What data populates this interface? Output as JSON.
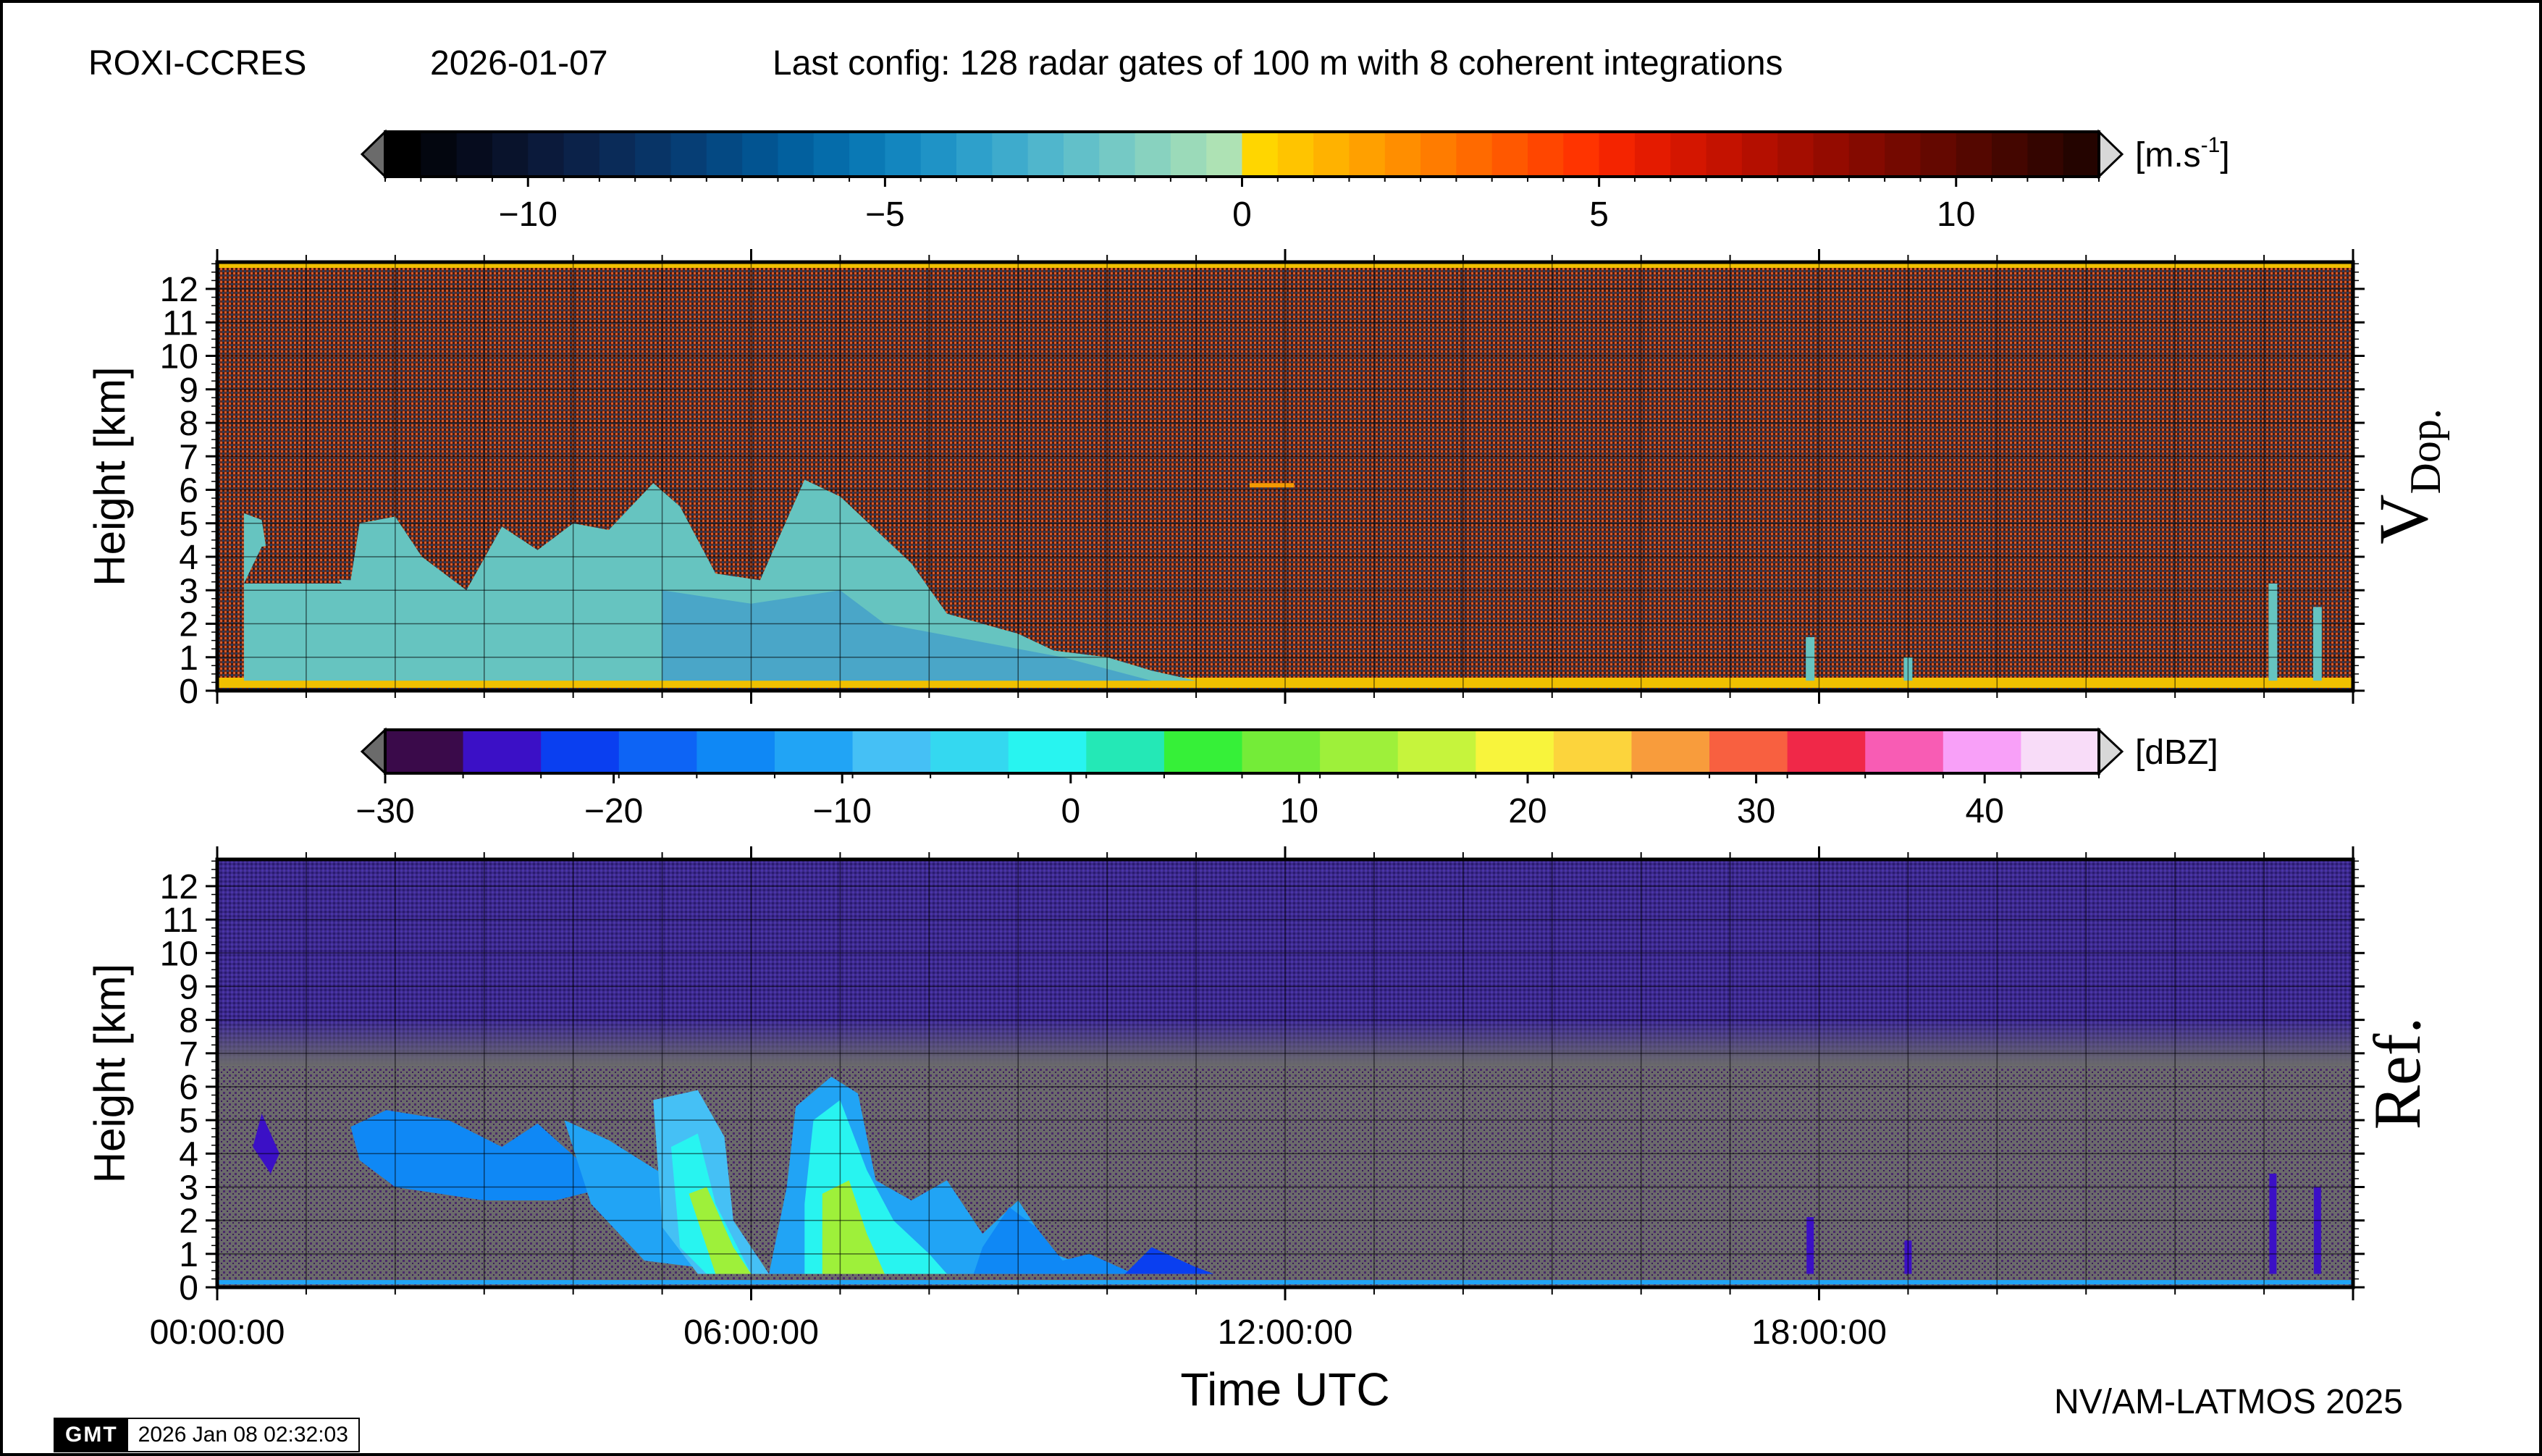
{
  "header": {
    "station": "ROXI-CCRES",
    "date": "2026-01-07",
    "config": "Last config: 128 radar gates of 100 m with 8 coherent integrations"
  },
  "footer": {
    "credit": "NV/AM-LATMOS 2025",
    "gmt_logo": "GMT",
    "gmt_timestamp": "2026 Jan 08 02:32:03"
  },
  "chart_data": [
    {
      "type": "heatmap",
      "name": "doppler_velocity",
      "side_label_main": "V",
      "side_label_sub": "Dop.",
      "ylabel": "Height [km]",
      "y_ticks": [
        0,
        1,
        2,
        3,
        4,
        5,
        6,
        7,
        8,
        9,
        10,
        11,
        12
      ],
      "ylim": [
        0,
        12.8
      ],
      "xlim_hours": [
        0,
        24
      ],
      "grid": true,
      "colorbar": {
        "unit_main": "[m.s",
        "unit_exp": "-1",
        "unit_close": "]",
        "range": [
          -12,
          12
        ],
        "tick_values": [
          -10,
          -5,
          0,
          5,
          10
        ],
        "tick_labels": [
          "−10",
          "−5",
          "0",
          "5",
          "10"
        ],
        "colors": [
          "#000000",
          "#03060f",
          "#060c1e",
          "#09132c",
          "#0b1a3b",
          "#0b2249",
          "#0a2b58",
          "#083466",
          "#063e75",
          "#044983",
          "#025491",
          "#02609e",
          "#056caa",
          "#0a79b5",
          "#1386bf",
          "#1f93c6",
          "#2ea0cb",
          "#3eabcc",
          "#50b6cc",
          "#62c0c9",
          "#75c9c5",
          "#88d2bf",
          "#9bdab9",
          "#aee2b4",
          "#ffd600",
          "#ffc400",
          "#ffb200",
          "#ffa000",
          "#ff8e00",
          "#ff7c00",
          "#ff6a00",
          "#ff5800",
          "#ff4600",
          "#ff3400",
          "#f42400",
          "#e41b00",
          "#d41600",
          "#c41200",
          "#b40f00",
          "#a40d00",
          "#940b00",
          "#840a00",
          "#740900",
          "#640800",
          "#540700",
          "#440600",
          "#340500",
          "#240400"
        ]
      }
    },
    {
      "type": "heatmap",
      "name": "reflectivity",
      "side_label_main": "Ref.",
      "ylabel": "Height [km]",
      "xlabel": "Time UTC",
      "y_ticks": [
        0,
        1,
        2,
        3,
        4,
        5,
        6,
        7,
        8,
        9,
        10,
        11,
        12
      ],
      "ylim": [
        0,
        12.8
      ],
      "xlim_hours": [
        0,
        24
      ],
      "x_tick_hours": [
        0,
        6,
        12,
        18
      ],
      "x_tick_labels": [
        "00:00:00",
        "06:00:00",
        "12:00:00",
        "18:00:00"
      ],
      "grid": true,
      "colorbar": {
        "unit_main": "[dBZ]",
        "range": [
          -30,
          45
        ],
        "tick_values": [
          -30,
          -20,
          -10,
          0,
          10,
          20,
          30,
          40
        ],
        "tick_labels": [
          "−30",
          "−20",
          "−10",
          "0",
          "10",
          "20",
          "30",
          "40"
        ],
        "colors": [
          "#3a0a4a",
          "#3b10c6",
          "#0a3ff0",
          "#0d64f5",
          "#0f88f5",
          "#21a4f5",
          "#45c0f5",
          "#34d8f0",
          "#28f4f0",
          "#24e8b6",
          "#36f038",
          "#74ec38",
          "#9ef03a",
          "#c6f43c",
          "#f8f43c",
          "#fcd43c",
          "#f89c3c",
          "#f86040",
          "#f02848",
          "#f85cb4",
          "#f8a0f8",
          "#f8dcf8"
        ]
      }
    }
  ]
}
